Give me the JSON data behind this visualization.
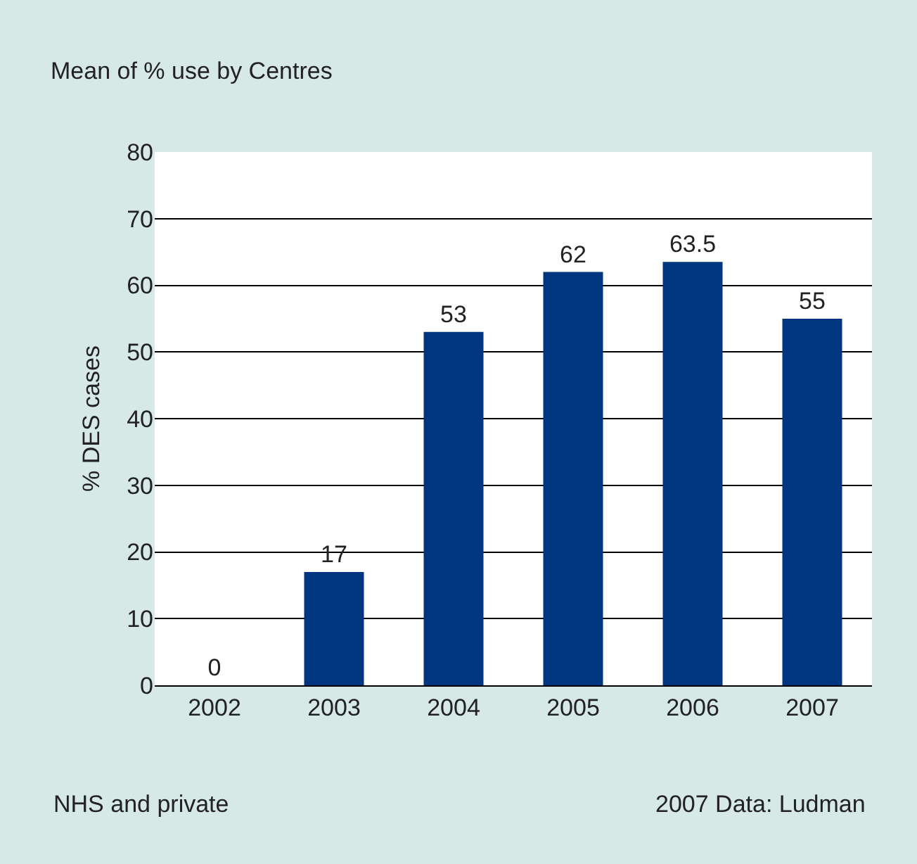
{
  "chart_data": {
    "type": "bar",
    "title": "Mean of % use by Centres",
    "ylabel": "% DES cases",
    "categories": [
      "2002",
      "2003",
      "2004",
      "2005",
      "2006",
      "2007"
    ],
    "values": [
      0,
      17,
      53,
      62,
      63.5,
      55
    ],
    "color": "#003580",
    "ylim": [
      0,
      80
    ],
    "yticks": [
      0,
      10,
      20,
      30,
      40,
      50,
      60,
      70,
      80
    ],
    "grid": "y",
    "data_labels": true,
    "annotations": [
      "NHS and private",
      "2007 Data: Ludman"
    ]
  }
}
